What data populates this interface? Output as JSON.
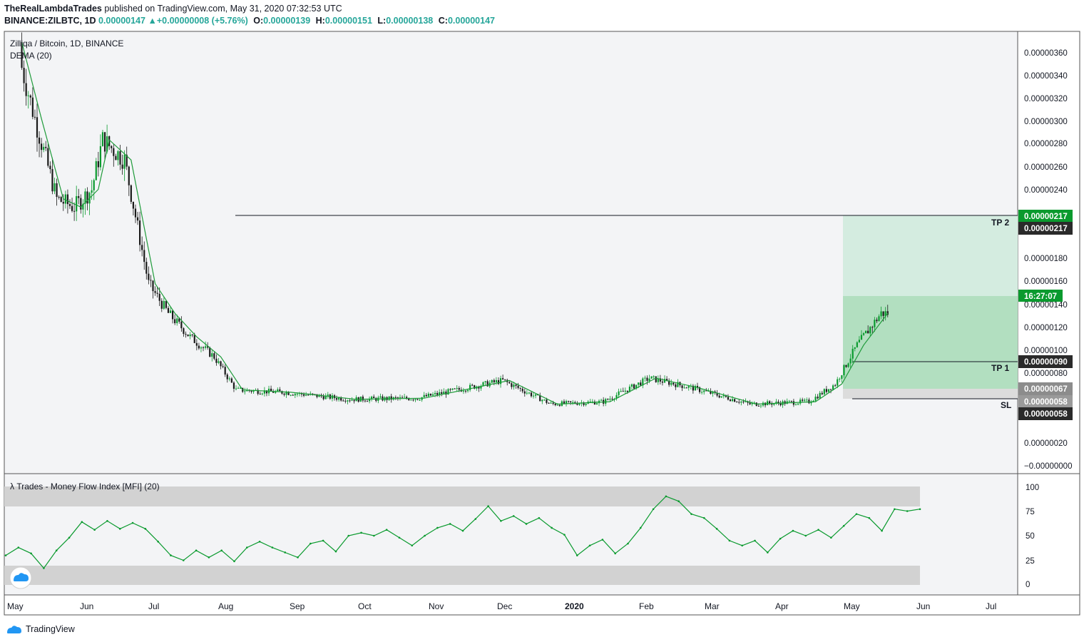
{
  "header": {
    "author": "TheRealLambdaTrades",
    "published": "published on TradingView.com, May 31, 2020 07:32:53 UTC",
    "symbol": "BINANCE:ZILBTC, 1D",
    "price": "0.00000147",
    "change": "+0.00000008 (+5.76%)",
    "open_label": "O:",
    "open": "0.00000139",
    "high_label": "H:",
    "high": "0.00000151",
    "low_label": "L:",
    "low": "0.00000138",
    "close_label": "C:",
    "close": "0.00000147"
  },
  "legend": {
    "title": "Zilliqa / Bitcoin, 1D, BINANCE",
    "indicator": "DEMA (20)",
    "mfi": "λ Trades - Money Flow Index [MFI] (20)"
  },
  "brand": "TradingView",
  "colors": {
    "up": "#26a69a",
    "candle_up": "#0a9a2e",
    "candle_down": "#1a1a1a",
    "dema": "#1f9b3a",
    "target_zone": "#a8ddb5",
    "stop_zone": "#d6d6d6",
    "level_line": "#131722",
    "badge_green": "#0a9a2e",
    "badge_dark": "#2a2a2a",
    "badge_gray": "#8c8c8c"
  },
  "chart_data": [
    {
      "type": "candlestick",
      "title": "Zilliqa / Bitcoin, 1D, BINANCE",
      "x_ticks": [
        "May",
        "Jun",
        "Jul",
        "Aug",
        "Sep",
        "Oct",
        "Nov",
        "Dec",
        "2020",
        "Feb",
        "Mar",
        "Apr",
        "May",
        "Jun",
        "Jul"
      ],
      "y_ticks": [
        "0.00000360",
        "0.00000340",
        "0.00000320",
        "0.00000300",
        "0.00000280",
        "0.00000260",
        "0.00000240",
        "0.00000180",
        "0.00000160",
        "0.00000140",
        "0.00000120",
        "0.00000100",
        "0.00000080",
        "0.00000020",
        "−0.00000000"
      ],
      "ylim": [
        -1e-08,
        3.74e-06
      ],
      "series": [
        {
          "name": "DEMA (20)",
          "approx_path": [
            [
              "2019-05-01",
              3.65e-06
            ],
            [
              "2019-05-10",
              3e-06
            ],
            [
              "2019-05-20",
              2.32e-06
            ],
            [
              "2019-05-28",
              2.25e-06
            ],
            [
              "2019-06-05",
              2.4e-06
            ],
            [
              "2019-06-10",
              2.82e-06
            ],
            [
              "2019-06-20",
              2.65e-06
            ],
            [
              "2019-07-01",
              1.6e-06
            ],
            [
              "2019-07-10",
              1.35e-06
            ],
            [
              "2019-07-20",
              1.15e-06
            ],
            [
              "2019-07-31",
              9.8e-07
            ],
            [
              "2019-08-10",
              7e-07
            ],
            [
              "2019-09-01",
              6.8e-07
            ],
            [
              "2019-10-01",
              6.2e-07
            ],
            [
              "2019-11-01",
              6.3e-07
            ],
            [
              "2019-12-10",
              7.8e-07
            ],
            [
              "2020-01-01",
              5.8e-07
            ],
            [
              "2020-01-25",
              6e-07
            ],
            [
              "2020-02-15",
              8e-07
            ],
            [
              "2020-03-05",
              7.2e-07
            ],
            [
              "2020-04-01",
              5.8e-07
            ],
            [
              "2020-04-28",
              6e-07
            ],
            [
              "2020-05-10",
              7.5e-07
            ],
            [
              "2020-05-20",
              1.08e-06
            ],
            [
              "2020-05-31",
              1.35e-06
            ]
          ]
        }
      ],
      "candles_approx": [
        {
          "date": "2020-05-31",
          "open": 1.39e-06,
          "high": 1.51e-06,
          "low": 1.38e-06,
          "close": 1.47e-06
        }
      ],
      "annotations": [
        {
          "label": "TP 2",
          "price": "0.00000217"
        },
        {
          "label": "TP 1",
          "price": "0.00000090"
        },
        {
          "label": "SL",
          "price": "0.00000058"
        }
      ],
      "price_badges": [
        {
          "text": "0.00000217",
          "style": "green"
        },
        {
          "text": "0.00000217",
          "style": "dark"
        },
        {
          "text": "16:27:07",
          "style": "green"
        },
        {
          "text": "0.00000090",
          "style": "dark"
        },
        {
          "text": "0.00000067",
          "style": "gray"
        },
        {
          "text": "0.00000058",
          "style": "gray"
        },
        {
          "text": "0.00000058",
          "style": "dark"
        }
      ],
      "position_entry": 6.7e-07,
      "position_target": 2.17e-06,
      "position_stop": 5.8e-07
    },
    {
      "type": "line",
      "title": "λ Trades - Money Flow Index [MFI] (20)",
      "y_ticks": [
        "100",
        "75",
        "50",
        "25",
        "0"
      ],
      "ylim": [
        0,
        100
      ],
      "bands": [
        [
          80,
          100
        ],
        [
          0,
          20
        ]
      ],
      "series": [
        {
          "values_approx": [
            30,
            38,
            32,
            17,
            35,
            48,
            64,
            56,
            65,
            57,
            63,
            57,
            44,
            30,
            25,
            35,
            28,
            35,
            24,
            38,
            44,
            38,
            33,
            28,
            42,
            45,
            34,
            50,
            53,
            50,
            56,
            48,
            40,
            50,
            58,
            62,
            55,
            67,
            80,
            65,
            70,
            62,
            68,
            58,
            51,
            30,
            40,
            46,
            32,
            42,
            58,
            77,
            90,
            85,
            72,
            68,
            57,
            45,
            40,
            45,
            33,
            47,
            55,
            50,
            56,
            48,
            60,
            72,
            68,
            55,
            77,
            75,
            77
          ]
        }
      ]
    }
  ]
}
